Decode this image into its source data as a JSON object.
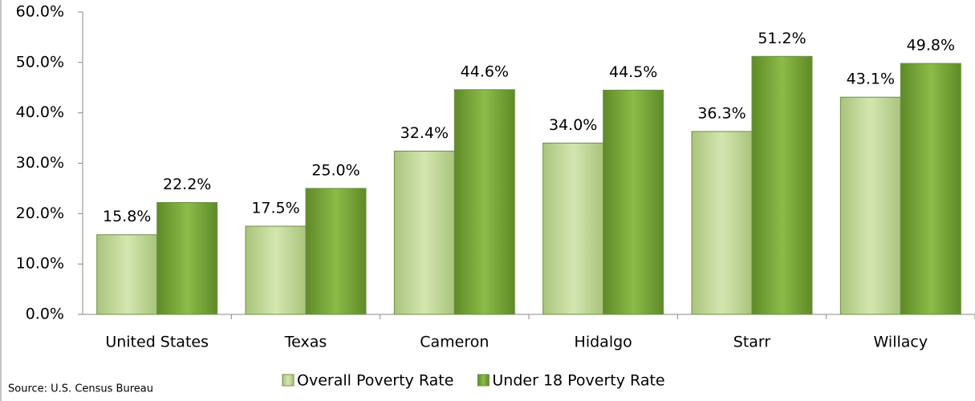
{
  "chart_data": {
    "type": "bar",
    "categories": [
      "United States",
      "Texas",
      "Cameron",
      "Hidalgo",
      "Starr",
      "Willacy"
    ],
    "series": [
      {
        "name": "Overall Poverty Rate",
        "color": "#c3d99a",
        "values": [
          15.8,
          17.5,
          32.4,
          34.0,
          36.3,
          43.1
        ],
        "value_labels": [
          "15.8%",
          "17.5%",
          "32.4%",
          "34.0%",
          "36.3%",
          "43.1%"
        ]
      },
      {
        "name": "Under 18 Poverty Rate",
        "color": "#7aa73a",
        "values": [
          22.2,
          25.0,
          44.6,
          44.5,
          51.2,
          49.8
        ],
        "value_labels": [
          "22.2%",
          "25.0%",
          "44.6%",
          "44.5%",
          "51.2%",
          "49.8%"
        ]
      }
    ],
    "ylim": [
      0,
      60
    ],
    "yticks": [
      {
        "value": 0,
        "label": "0.0%"
      },
      {
        "value": 10,
        "label": "10.0%"
      },
      {
        "value": 20,
        "label": "20.0%"
      },
      {
        "value": 30,
        "label": "30.0%"
      },
      {
        "value": 40,
        "label": "40.0%"
      },
      {
        "value": 50,
        "label": "50.0%"
      },
      {
        "value": 60,
        "label": "60.0%"
      }
    ],
    "annotation": "Source:  U.S. Census Bureau",
    "legend": "bottom"
  }
}
